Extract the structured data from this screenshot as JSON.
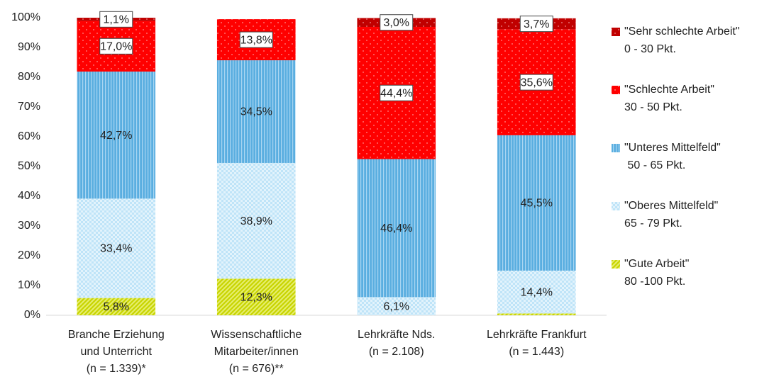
{
  "chart_data": {
    "type": "stacked_bar",
    "categories": [
      "Branche Erziehung\nund Unterricht\n(n = 1.339)*",
      "Wissenschaftliche\nMitarbeiter/innen\n(n = 676)**",
      "Lehrkräfte Nds.\n(n = 2.108)",
      "Lehrkräfte Frankfurt\n(n = 1.443)"
    ],
    "series": [
      {
        "name": "\"Gute Arbeit\"",
        "range": "80 -100 Pkt.",
        "color": "#c8d400",
        "pattern": "hatch",
        "values": [
          5.8,
          12.3,
          null,
          0.6
        ],
        "value_labels": [
          "5,8%",
          "12,3%",
          null,
          null
        ]
      },
      {
        "name": "\"Oberes Mittelfeld\"",
        "range": "65 - 79 Pkt.",
        "color": "#bfe4f8",
        "pattern": "checker",
        "values": [
          33.4,
          38.9,
          6.1,
          14.4
        ],
        "value_labels": [
          "33,4%",
          "38,9%",
          "6,1%",
          "14,4%"
        ]
      },
      {
        "name": "\"Unteres Mittelfeld\"",
        "range": " 50 - 65 Pkt.",
        "color": "#5aaee0",
        "pattern": "vstripe",
        "values": [
          42.7,
          34.5,
          46.4,
          45.5
        ],
        "value_labels": [
          "42,7%",
          "34,5%",
          "46,4%",
          "45,5%"
        ]
      },
      {
        "name": "\"Schlechte Arbeit\"",
        "range": "30 - 50 Pkt.",
        "color": "#ff0000",
        "pattern": "dots",
        "values": [
          17.0,
          13.8,
          44.4,
          35.6
        ],
        "value_labels": [
          "17,0%",
          "13,8%",
          "44,4%",
          "35,6%"
        ]
      },
      {
        "name": "\"Sehr schlechte Arbeit\"",
        "range": "0 - 30 Pkt.",
        "color": "#c00000",
        "pattern": "dots",
        "values": [
          1.1,
          null,
          3.0,
          3.7
        ],
        "value_labels": [
          "1,1%",
          null,
          "3,0%",
          "3,7%"
        ]
      }
    ],
    "ylim": [
      0,
      100
    ],
    "yticks": [
      {
        "value": 0,
        "label": "0%"
      },
      {
        "value": 10,
        "label": "10%"
      },
      {
        "value": 20,
        "label": "20%"
      },
      {
        "value": 30,
        "label": "30%"
      },
      {
        "value": 40,
        "label": "40%"
      },
      {
        "value": 50,
        "label": "50%"
      },
      {
        "value": 60,
        "label": "60%"
      },
      {
        "value": 70,
        "label": "70%"
      },
      {
        "value": 80,
        "label": "80%"
      },
      {
        "value": 90,
        "label": "90%"
      },
      {
        "value": 100,
        "label": "100%"
      }
    ],
    "grid": false,
    "legend": "right"
  }
}
